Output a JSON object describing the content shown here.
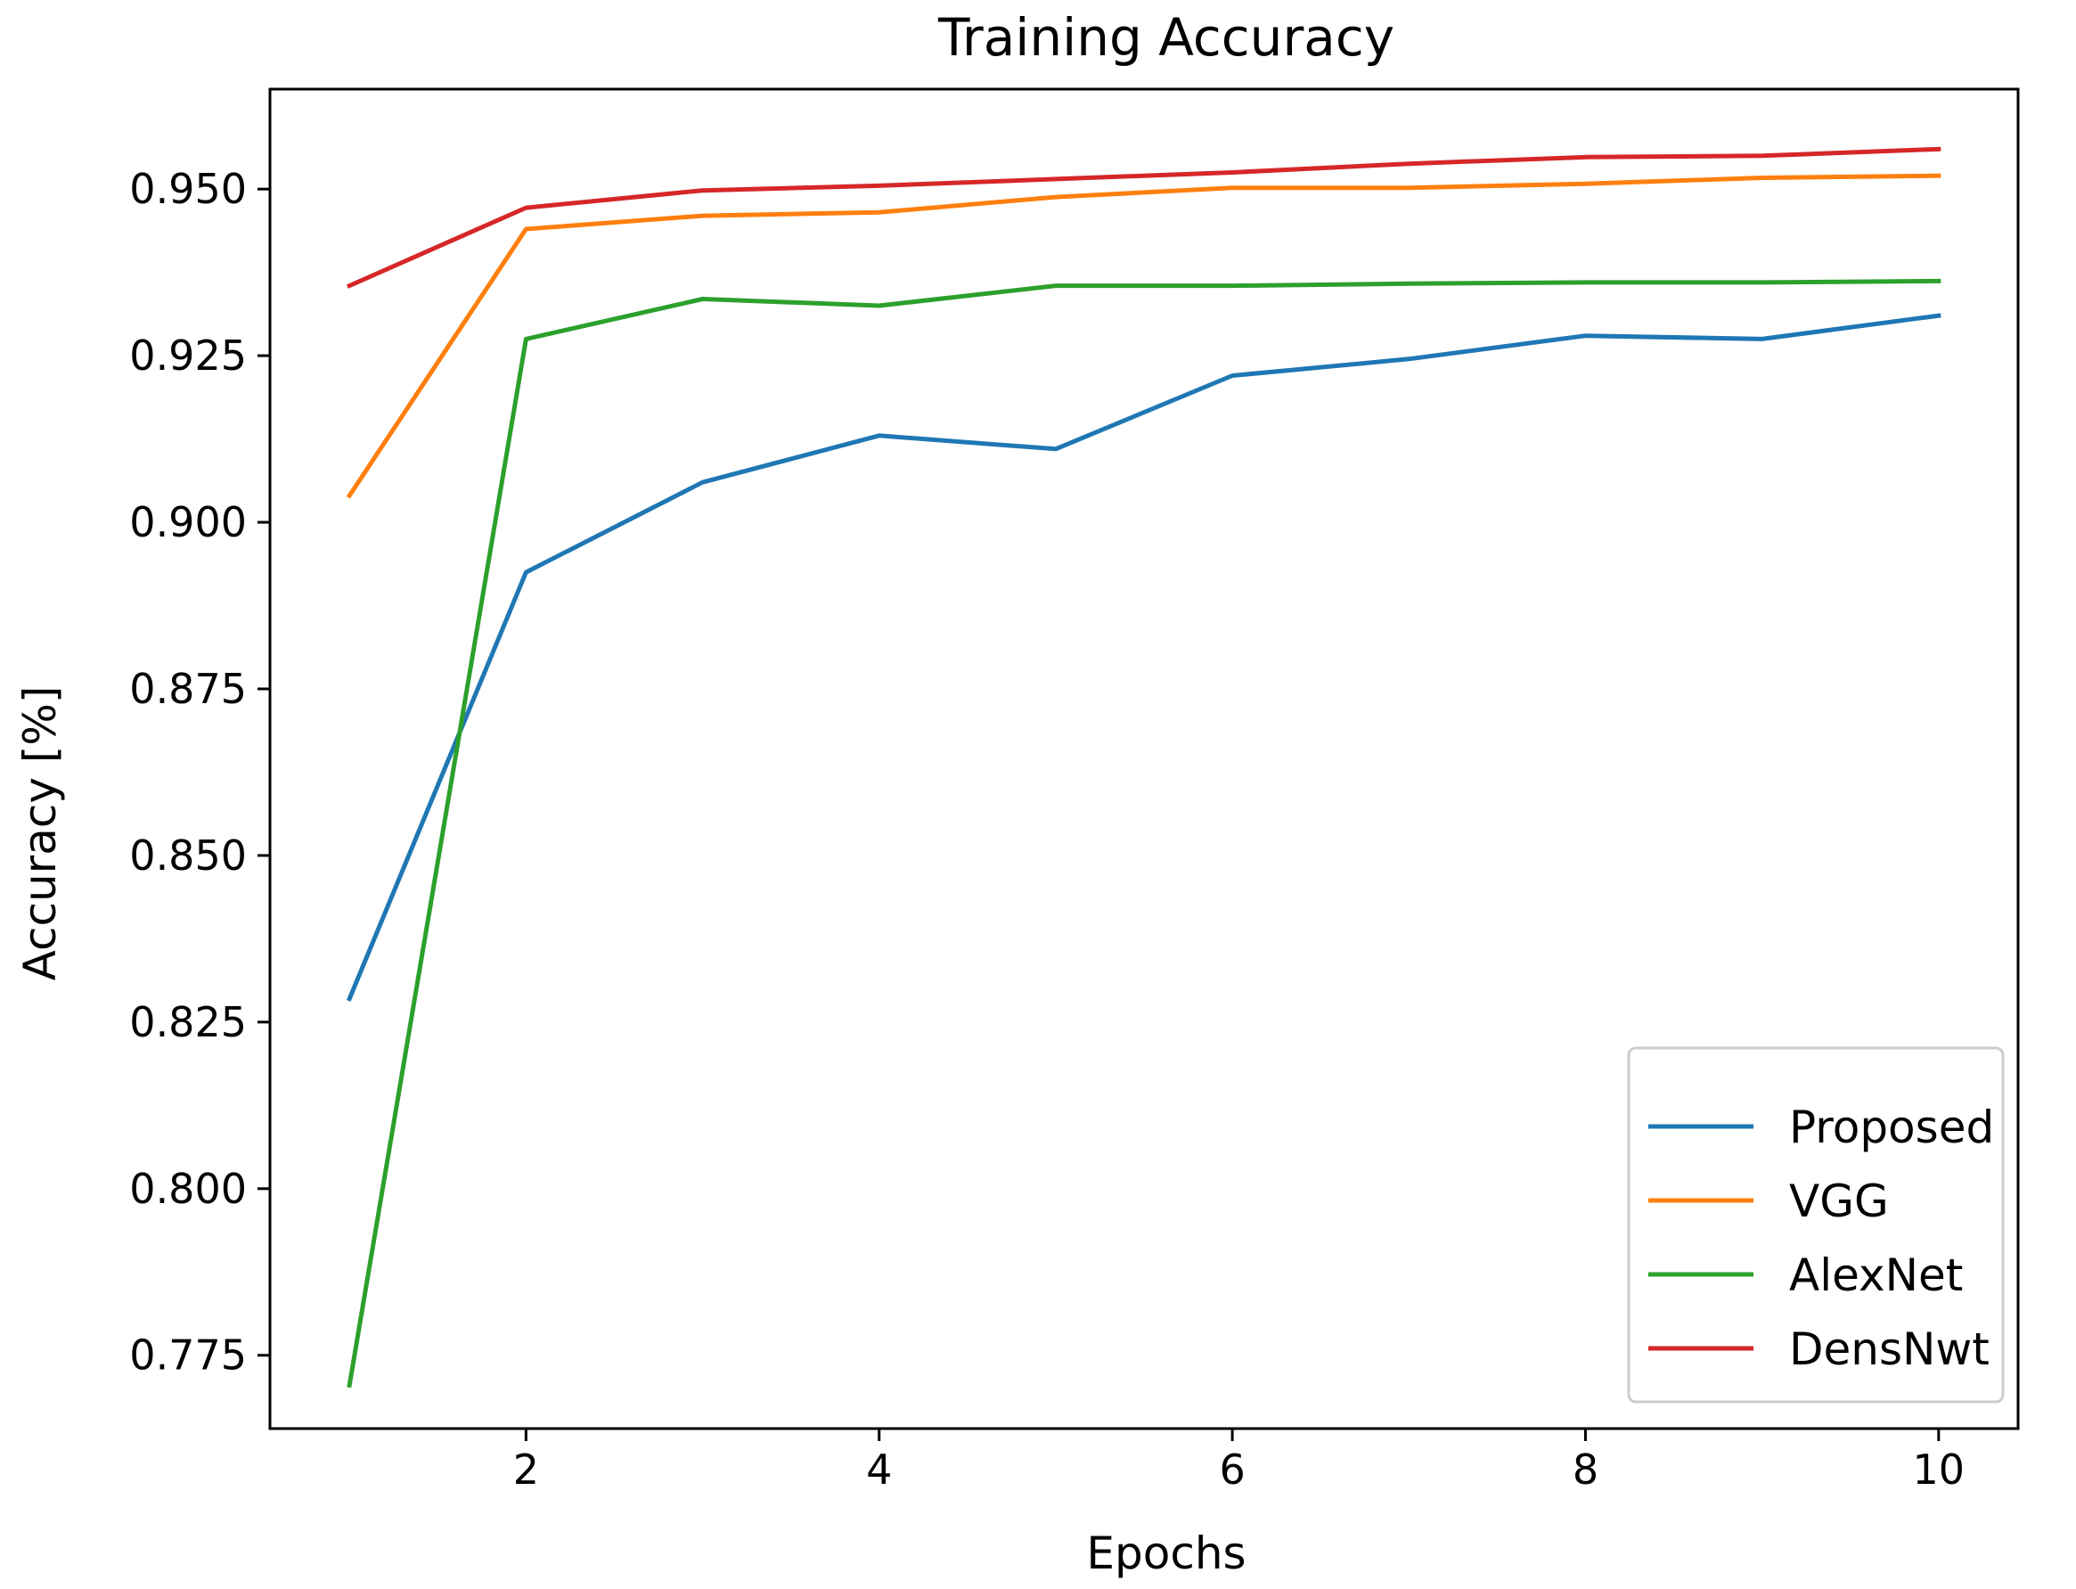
{
  "chart_data": {
    "type": "line",
    "title": "Training Accuracy",
    "xlabel": "Epochs",
    "ylabel": "Accuracy [%]",
    "x": [
      1,
      2,
      3,
      4,
      5,
      6,
      7,
      8,
      9,
      10
    ],
    "xlim": [
      0.55,
      10.45
    ],
    "ylim": [
      0.764,
      0.965
    ],
    "xticks": [
      2,
      4,
      6,
      8,
      10
    ],
    "xtick_labels": [
      "2",
      "4",
      "6",
      "8",
      "10"
    ],
    "yticks": [
      0.775,
      0.8,
      0.825,
      0.85,
      0.875,
      0.9,
      0.925,
      0.95
    ],
    "ytick_labels": [
      "0.775",
      "0.800",
      "0.825",
      "0.850",
      "0.875",
      "0.900",
      "0.925",
      "0.950"
    ],
    "grid": false,
    "legend_position": "lower-right",
    "series": [
      {
        "name": "Proposed",
        "color": "#1f77b4",
        "values": [
          0.8285,
          0.8925,
          0.906,
          0.913,
          0.911,
          0.922,
          0.9245,
          0.928,
          0.9275,
          0.931
        ]
      },
      {
        "name": "VGG",
        "color": "#ff7f0e",
        "values": [
          0.904,
          0.944,
          0.946,
          0.9465,
          0.9488,
          0.9502,
          0.9502,
          0.9508,
          0.9517,
          0.952
        ]
      },
      {
        "name": "AlexNet",
        "color": "#2ca02c",
        "values": [
          0.7705,
          0.9275,
          0.9335,
          0.9325,
          0.9355,
          0.9355,
          0.9358,
          0.936,
          0.936,
          0.9362
        ]
      },
      {
        "name": "DensNwt",
        "color": "#d62728",
        "values": [
          0.9355,
          0.9472,
          0.9498,
          0.9505,
          0.9515,
          0.9525,
          0.9538,
          0.9548,
          0.955,
          0.956
        ]
      }
    ]
  }
}
